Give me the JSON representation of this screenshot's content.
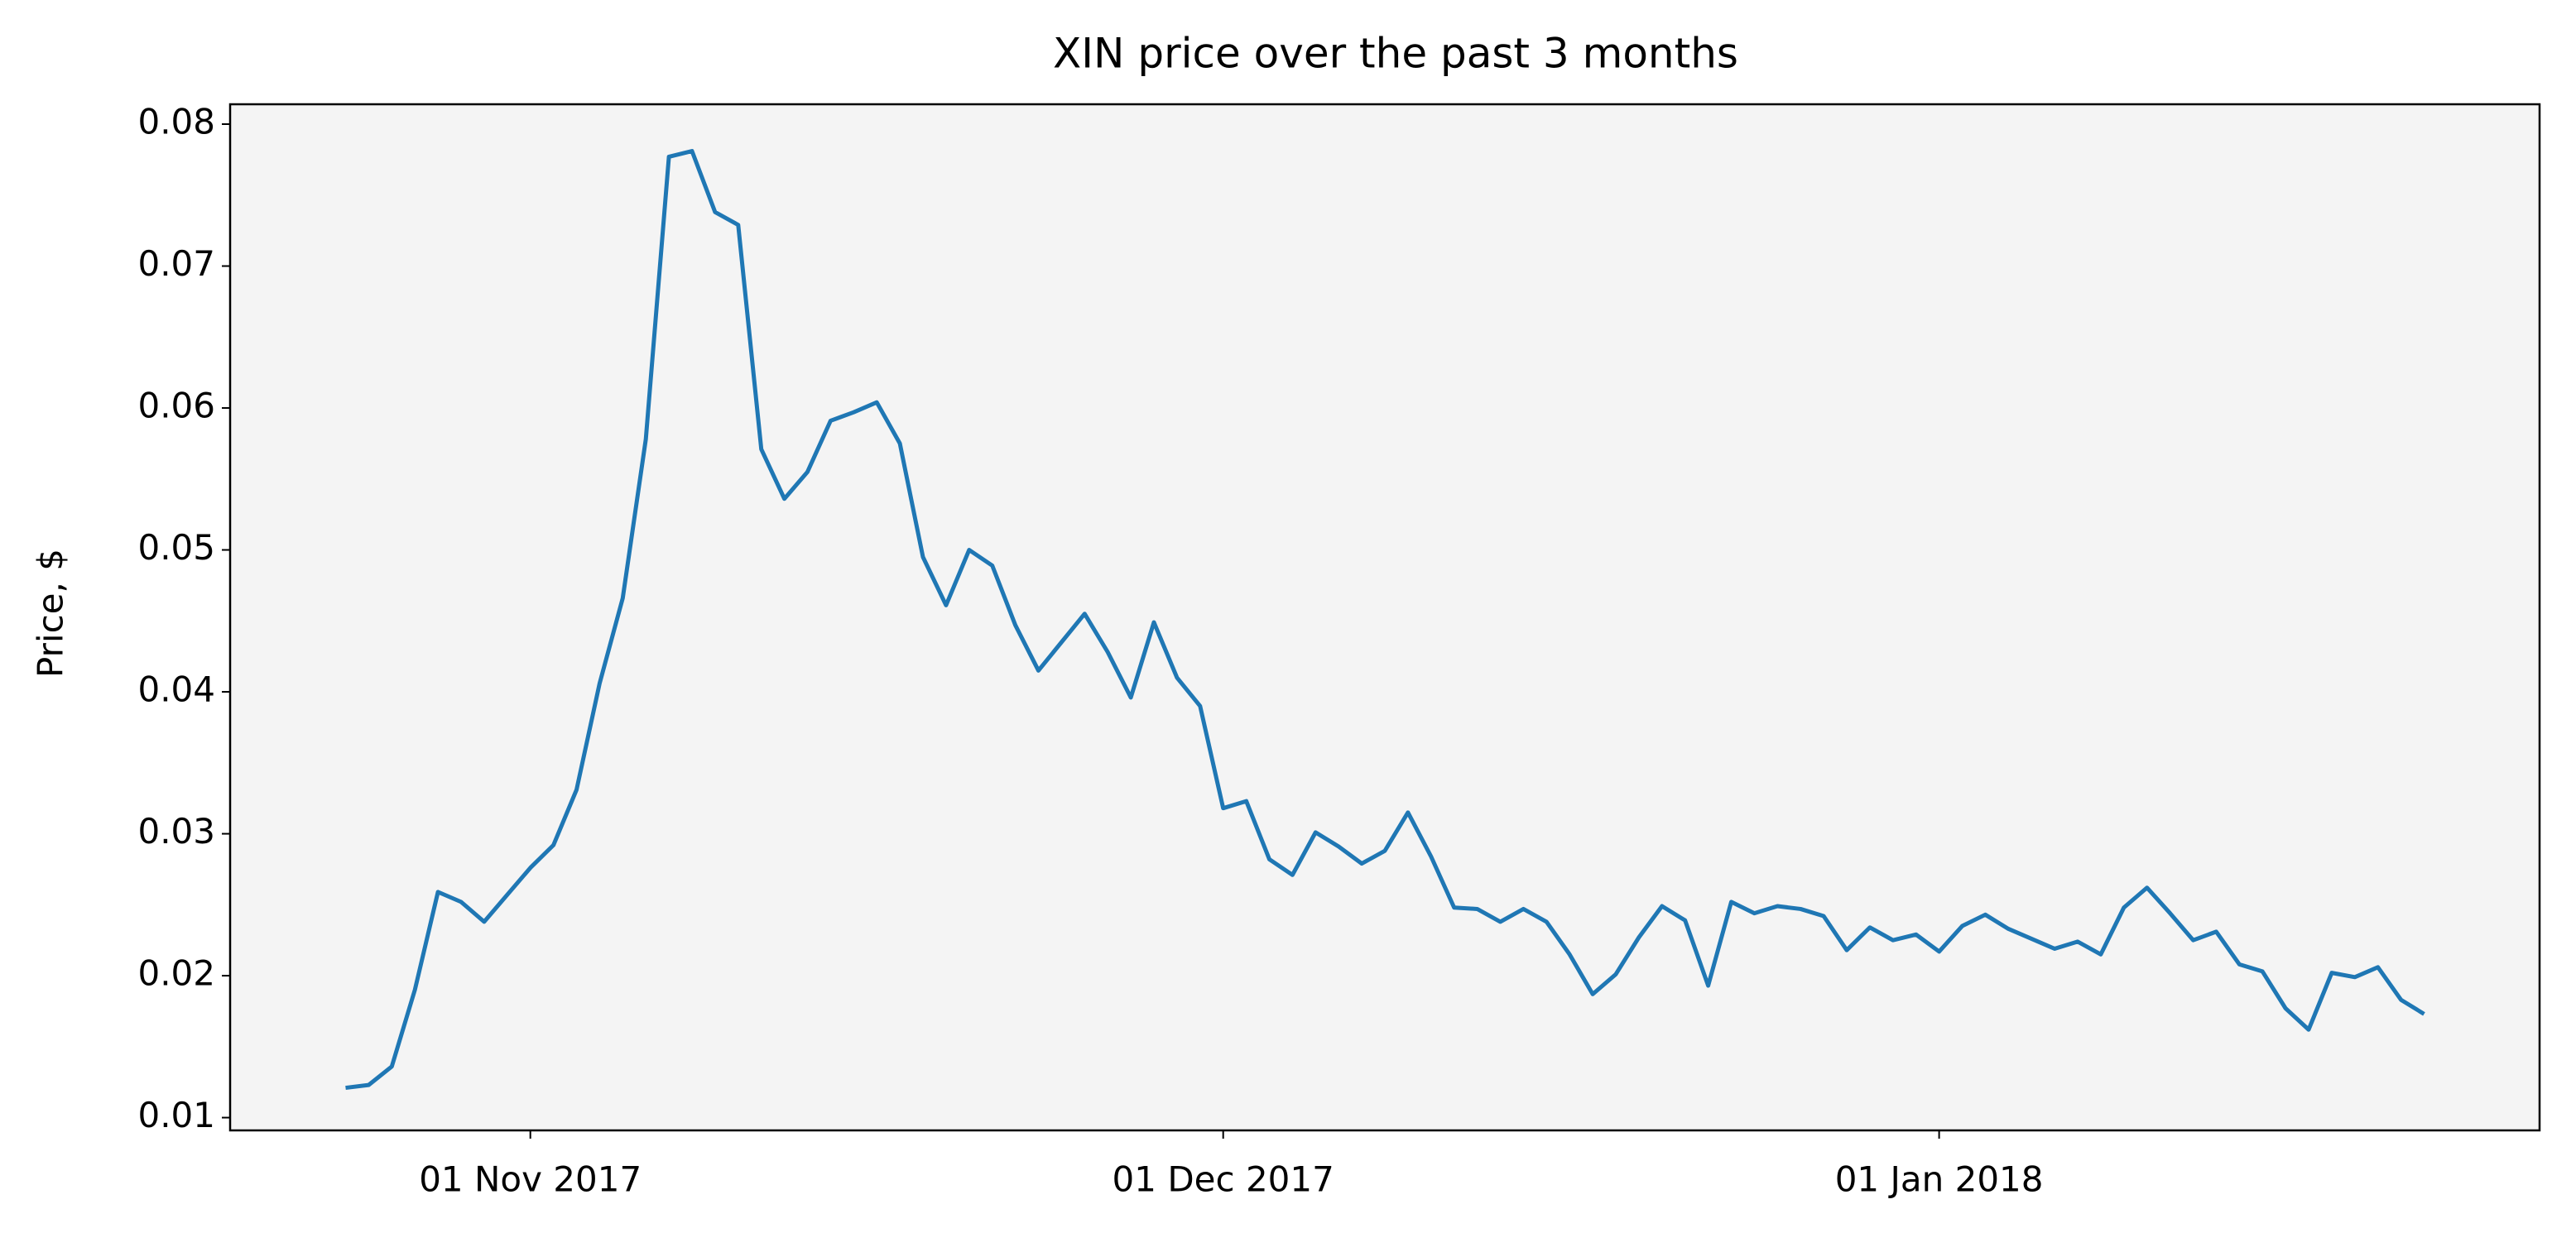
{
  "chart_data": {
    "type": "line",
    "title": "XIN price over the past 3 months",
    "y_label": "Price, $",
    "x": [
      "2017-10-24",
      "2017-10-25",
      "2017-10-26",
      "2017-10-27",
      "2017-10-28",
      "2017-10-29",
      "2017-10-30",
      "2017-10-31",
      "2017-11-01",
      "2017-11-02",
      "2017-11-03",
      "2017-11-04",
      "2017-11-05",
      "2017-11-06",
      "2017-11-07",
      "2017-11-08",
      "2017-11-09",
      "2017-11-10",
      "2017-11-11",
      "2017-11-12",
      "2017-11-13",
      "2017-11-14",
      "2017-11-15",
      "2017-11-16",
      "2017-11-17",
      "2017-11-18",
      "2017-11-19",
      "2017-11-20",
      "2017-11-21",
      "2017-11-22",
      "2017-11-23",
      "2017-11-24",
      "2017-11-25",
      "2017-11-26",
      "2017-11-27",
      "2017-11-28",
      "2017-11-29",
      "2017-11-30",
      "2017-12-01",
      "2017-12-02",
      "2017-12-03",
      "2017-12-04",
      "2017-12-05",
      "2017-12-06",
      "2017-12-07",
      "2017-12-08",
      "2017-12-09",
      "2017-12-10",
      "2017-12-11",
      "2017-12-12",
      "2017-12-13",
      "2017-12-14",
      "2017-12-15",
      "2017-12-16",
      "2017-12-17",
      "2017-12-18",
      "2017-12-19",
      "2017-12-20",
      "2017-12-21",
      "2017-12-22",
      "2017-12-23",
      "2017-12-24",
      "2017-12-25",
      "2017-12-26",
      "2017-12-27",
      "2017-12-28",
      "2017-12-29",
      "2017-12-30",
      "2017-12-31",
      "2018-01-01",
      "2018-01-02",
      "2018-01-03",
      "2018-01-04",
      "2018-01-05",
      "2018-01-06",
      "2018-01-07",
      "2018-01-08",
      "2018-01-09",
      "2018-01-10",
      "2018-01-11",
      "2018-01-12",
      "2018-01-13",
      "2018-01-14",
      "2018-01-15",
      "2018-01-16",
      "2018-01-17",
      "2018-01-18",
      "2018-01-19",
      "2018-01-20",
      "2018-01-21",
      "2018-01-22"
    ],
    "series": [
      {
        "name": "XIN",
        "color": "#1f77b4",
        "values": [
          0.0121,
          0.0123,
          0.0136,
          0.019,
          0.0259,
          0.0252,
          0.0238,
          0.0257,
          0.0276,
          0.0292,
          0.0331,
          0.0406,
          0.0466,
          0.0578,
          0.0777,
          0.0781,
          0.0738,
          0.0729,
          0.0571,
          0.0536,
          0.0555,
          0.0591,
          0.0597,
          0.0604,
          0.0575,
          0.0495,
          0.0461,
          0.05,
          0.0489,
          0.0447,
          0.0415,
          0.0435,
          0.0455,
          0.0428,
          0.0396,
          0.0449,
          0.041,
          0.039,
          0.0318,
          0.0323,
          0.0282,
          0.0271,
          0.0301,
          0.0291,
          0.0279,
          0.0288,
          0.0315,
          0.0284,
          0.0248,
          0.0247,
          0.0238,
          0.0247,
          0.0238,
          0.0215,
          0.0187,
          0.0201,
          0.0227,
          0.0249,
          0.0239,
          0.0193,
          0.0252,
          0.0244,
          0.0249,
          0.0247,
          0.0242,
          0.0218,
          0.0234,
          0.0225,
          0.0229,
          0.0217,
          0.0235,
          0.0243,
          0.0233,
          0.0226,
          0.0219,
          0.0224,
          0.0215,
          0.0248,
          0.0262,
          0.0244,
          0.0225,
          0.0231,
          0.0208,
          0.0203,
          0.0177,
          0.0162,
          0.0202,
          0.0199,
          0.0206,
          0.0183,
          0.0173
        ]
      }
    ],
    "xlim": [
      "2017-10-19",
      "2018-01-27"
    ],
    "xticks": [
      {
        "value": "2017-11-01",
        "label": "01 Nov 2017"
      },
      {
        "value": "2017-12-01",
        "label": "01 Dec 2017"
      },
      {
        "value": "2018-01-01",
        "label": "01 Jan 2018"
      }
    ],
    "ylim": [
      0.0091,
      0.0814
    ],
    "yticks": [
      0.01,
      0.02,
      0.03,
      0.04,
      0.05,
      0.06,
      0.07,
      0.08
    ],
    "background": "#f4f4f4"
  }
}
